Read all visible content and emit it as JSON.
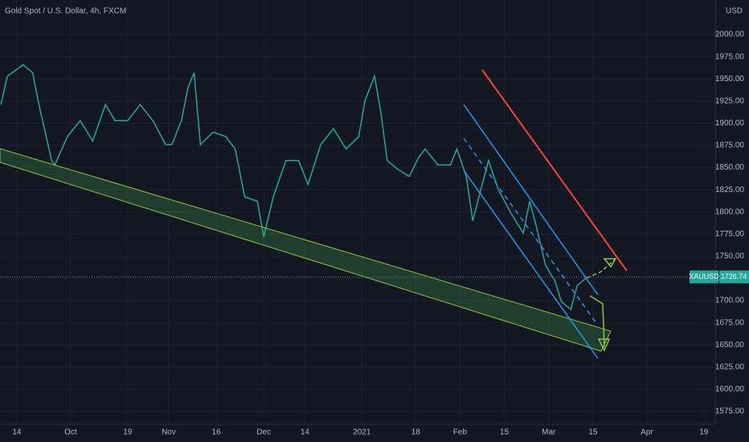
{
  "chart_data": {
    "type": "line",
    "title": "Gold Spot / U.S. Dollar, 4h, FXCM",
    "currency": "USD",
    "symbol": "XAUUSD",
    "last_price": 1726.74,
    "color": "#26a69a",
    "x": [
      -5,
      -3,
      2,
      5,
      7,
      11,
      12,
      16,
      20,
      24,
      28,
      31,
      35,
      39,
      43,
      47,
      49,
      52,
      54,
      56,
      58,
      62,
      66,
      69,
      72,
      76,
      78,
      81,
      85,
      89,
      92,
      96,
      100,
      104,
      108,
      110,
      113,
      115,
      117,
      120,
      124,
      127,
      129,
      133,
      137,
      139,
      142,
      144,
      147,
      149,
      152,
      156,
      160,
      162,
      164,
      167,
      170,
      172,
      175,
      177,
      180
    ],
    "values": [
      1921,
      1953,
      1966,
      1957,
      1921,
      1858,
      1853,
      1885,
      1903,
      1880,
      1921,
      1903,
      1903,
      1921,
      1903,
      1876,
      1876,
      1903,
      1939,
      1957,
      1876,
      1890,
      1885,
      1871,
      1817,
      1812,
      1772,
      1817,
      1858,
      1858,
      1831,
      1876,
      1894,
      1871,
      1885,
      1926,
      1953,
      1912,
      1858,
      1849,
      1840,
      1862,
      1871,
      1853,
      1853,
      1871,
      1840,
      1790,
      1831,
      1858,
      1826,
      1799,
      1776,
      1812,
      1785,
      1740,
      1722,
      1699,
      1690,
      1717,
      1726
    ],
    "xlim": [
      -5.3,
      220.6
    ],
    "xticks": [
      {
        "value": 0,
        "label": "14"
      },
      {
        "value": 17,
        "label": "Oct"
      },
      {
        "value": 35,
        "label": "19"
      },
      {
        "value": 48,
        "label": "Nov"
      },
      {
        "value": 63,
        "label": "16"
      },
      {
        "value": 78,
        "label": "Dec"
      },
      {
        "value": 91,
        "label": "14"
      },
      {
        "value": 109,
        "label": "2021"
      },
      {
        "value": 126,
        "label": "18"
      },
      {
        "value": 140,
        "label": "Feb"
      },
      {
        "value": 154,
        "label": "15"
      },
      {
        "value": 168,
        "label": "Mar"
      },
      {
        "value": 182,
        "label": "15"
      },
      {
        "value": 199,
        "label": "Apr"
      },
      {
        "value": 217,
        "label": "19"
      }
    ],
    "ylim": [
      1560.5,
      2039
    ],
    "yticks": [
      {
        "value": 1575,
        "label": "1575.00"
      },
      {
        "value": 1600,
        "label": "1600.00"
      },
      {
        "value": 1625,
        "label": "1625.00"
      },
      {
        "value": 1650,
        "label": "1650.00"
      },
      {
        "value": 1675,
        "label": "1675.00"
      },
      {
        "value": 1700,
        "label": "1700.00"
      },
      {
        "value": 1725,
        "label": "1725.00"
      },
      {
        "value": 1750,
        "label": "1750.00"
      },
      {
        "value": 1775,
        "label": "1775.00"
      },
      {
        "value": 1800,
        "label": "1800.00"
      },
      {
        "value": 1825,
        "label": "1825.00"
      },
      {
        "value": 1850,
        "label": "1850.00"
      },
      {
        "value": 1875,
        "label": "1875.00"
      },
      {
        "value": 1900,
        "label": "1900.00"
      },
      {
        "value": 1925,
        "label": "1925.00"
      },
      {
        "value": 1950,
        "label": "1950.00"
      },
      {
        "value": 1975,
        "label": "1975.00"
      },
      {
        "value": 2000,
        "label": "2000.00"
      }
    ]
  }
}
